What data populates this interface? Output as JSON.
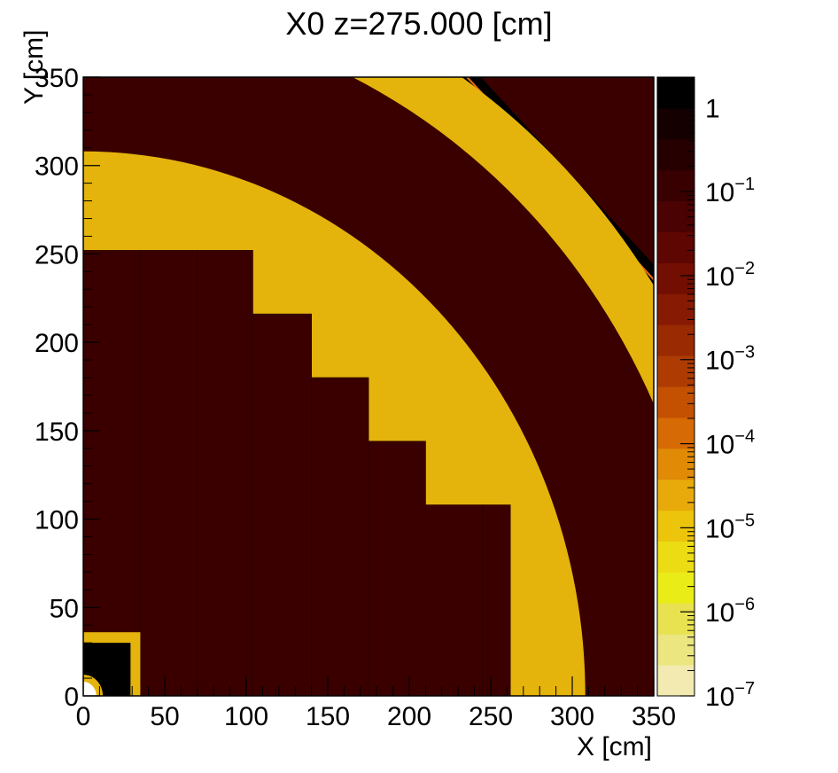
{
  "chart_data": {
    "type": "heatmap",
    "title": "X0 z=275.000 [cm]",
    "xlabel": "X [cm]",
    "ylabel": "Y [cm]",
    "xlim": [
      0,
      350
    ],
    "ylim": [
      0,
      350
    ],
    "x_ticks": [
      "0",
      "50",
      "100",
      "150",
      "200",
      "250",
      "300",
      "350"
    ],
    "y_ticks": [
      "0",
      "50",
      "100",
      "150",
      "200",
      "250",
      "300",
      "350"
    ],
    "z_scale": "log",
    "zlim": [
      1e-07,
      2.3
    ],
    "z_ticks": [
      {
        "base": "1",
        "exp": "",
        "value": 1
      },
      {
        "base": "10",
        "exp": "−1",
        "value": 0.1
      },
      {
        "base": "10",
        "exp": "−2",
        "value": 0.01
      },
      {
        "base": "10",
        "exp": "−3",
        "value": 0.001
      },
      {
        "base": "10",
        "exp": "−4",
        "value": 0.0001
      },
      {
        "base": "10",
        "exp": "−5",
        "value": 1e-05
      },
      {
        "base": "10",
        "exp": "−6",
        "value": 1e-06
      },
      {
        "base": "10",
        "exp": "−7",
        "value": 1e-07
      }
    ],
    "colors": {
      "dark": "#3a0000",
      "gold": "#e4b40c",
      "black": "#000000",
      "palette": [
        "#f2eab0",
        "#ece680",
        "#e8e250",
        "#eaec18",
        "#ecdc14",
        "#ecc40c",
        "#e8aa0a",
        "#e08a06",
        "#d66a04",
        "#c45002",
        "#ae3c02",
        "#9a2a02",
        "#861a02",
        "#720e02",
        "#5e0602",
        "#4a0202",
        "#380000",
        "#260000",
        "#140000",
        "#000000"
      ]
    },
    "regions": [
      {
        "name": "outer-octagon",
        "shape": "octagon",
        "r": 420,
        "level": "black"
      },
      {
        "name": "outer-ring",
        "shape": "circle",
        "r": 420,
        "level": "gold"
      },
      {
        "name": "dark-ring",
        "shape": "circle",
        "r": 387,
        "level": "dark"
      },
      {
        "name": "gold-ring",
        "shape": "circle",
        "r": 308,
        "level": "gold"
      },
      {
        "name": "ecal-staircase",
        "shape": "stair",
        "level": "dark",
        "steps": [
          [
            0,
            252
          ],
          [
            35,
            252
          ],
          [
            70,
            252
          ],
          [
            104,
            216
          ],
          [
            140,
            180
          ],
          [
            175,
            144
          ],
          [
            210,
            108
          ],
          [
            245,
            108
          ],
          [
            262,
            0
          ]
        ]
      },
      {
        "name": "inner-gold-box",
        "shape": "rect",
        "x": [
          0,
          35
        ],
        "y": [
          0,
          36
        ],
        "level": "gold"
      },
      {
        "name": "inner-dark-box",
        "shape": "rect",
        "x": [
          0,
          29
        ],
        "y": [
          0,
          30
        ],
        "level": "black"
      },
      {
        "name": "beampipe",
        "shape": "circle",
        "r": 12,
        "level": "gold"
      },
      {
        "name": "beampipe-core",
        "shape": "circle",
        "r": 8,
        "level": "white"
      }
    ]
  }
}
